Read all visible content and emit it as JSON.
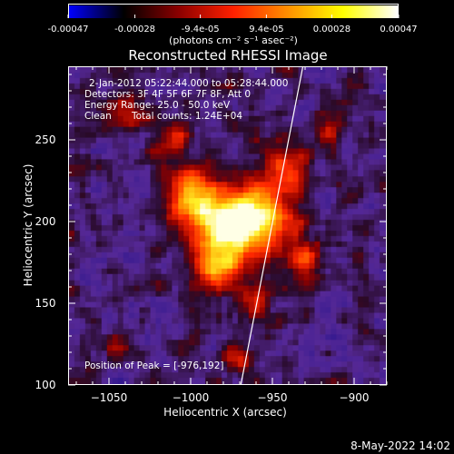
{
  "colorbar": {
    "ticks": [
      "-0.00047",
      "-0.00028",
      "-9.4e-05",
      "9.4e-05",
      "0.00028",
      "0.00047"
    ],
    "tick_values": [
      -0.00047,
      -0.00028,
      -9.4e-05,
      9.4e-05,
      0.00028,
      0.00047
    ],
    "unit": "(photons cm⁻² s⁻¹ asec⁻²)",
    "colors": [
      "#0000ff",
      "#000000",
      "#8b0000",
      "#ff2000",
      "#ff9000",
      "#ffff00",
      "#ffffff"
    ]
  },
  "chart_data": {
    "type": "heatmap",
    "title": "Reconstructed RHESSI Image",
    "xlabel": "Heliocentric X (arcsec)",
    "ylabel": "Heliocentric Y (arcsec)",
    "xlim": [
      -1075,
      -880
    ],
    "ylim": [
      100,
      295
    ],
    "x_ticks": [
      -1050,
      -1000,
      -950,
      -900
    ],
    "x_tick_labels": [
      "−1050",
      "−1000",
      "−950",
      "−900"
    ],
    "y_ticks": [
      100,
      150,
      200,
      250
    ],
    "y_tick_labels": [
      "100",
      "150",
      "200",
      "250"
    ],
    "peak": [
      -976,
      192
    ],
    "annotations": {
      "time_range": "2-Jan-2012 05:22:44.000 to 05:28:44.000",
      "detectors": "Detectors: 3F 4F 5F 6F 7F 8F, Att 0",
      "energy": "Energy Range: 25.0 - 50.0 keV",
      "clean_label": "Clean",
      "counts": "Total counts: 1.24E+04",
      "peak_text": "Position of Peak = [-976,192]"
    },
    "limb_line": [
      [
        -970,
        100
      ],
      [
        -932,
        295
      ]
    ]
  },
  "timestamp": "8-May-2022 14:02"
}
